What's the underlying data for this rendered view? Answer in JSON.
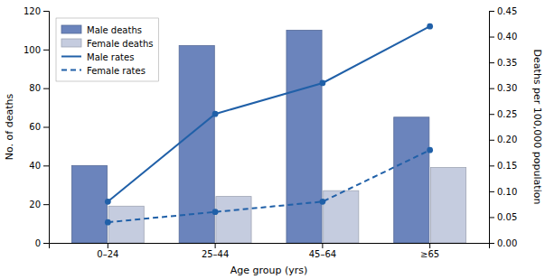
{
  "chart_data": {
    "type": "bar",
    "categories": [
      "0–24",
      "25–44",
      "45–64",
      "≥65"
    ],
    "xlabel": "Age group (yrs)",
    "ylabel": "No. of deaths",
    "y2label": "Deaths per 100,000 population",
    "ylim": [
      0,
      120
    ],
    "yticks": [
      0,
      20,
      40,
      60,
      80,
      100,
      120
    ],
    "y2lim": [
      0,
      0.45
    ],
    "y2ticks": [
      {
        "value": 0.0,
        "label": "0.00"
      },
      {
        "value": 0.05,
        "label": "0.05"
      },
      {
        "value": 0.1,
        "label": "0.10"
      },
      {
        "value": 0.15,
        "label": "0.15"
      },
      {
        "value": 0.2,
        "label": "0.20"
      },
      {
        "value": 0.25,
        "label": "0.25"
      },
      {
        "value": 0.3,
        "label": "0.30"
      },
      {
        "value": 0.35,
        "label": "0.35"
      },
      {
        "value": 0.4,
        "label": "0.40"
      },
      {
        "value": 0.45,
        "label": "0.45"
      }
    ],
    "grid": false,
    "legend": "upper left",
    "series": [
      {
        "name": "Male deaths",
        "type": "bar",
        "color": "#6b84bc",
        "values": [
          40,
          102,
          110,
          65
        ]
      },
      {
        "name": "Female deaths",
        "type": "bar",
        "color": "#c5ccdf",
        "values": [
          19,
          24,
          27,
          39
        ]
      },
      {
        "name": "Male rates",
        "type": "line",
        "axis": "y2",
        "color": "#2060a8",
        "line_style": "solid",
        "marker": "circle",
        "values": [
          0.08,
          0.25,
          0.31,
          0.42
        ]
      },
      {
        "name": "Female rates",
        "type": "line",
        "axis": "y2",
        "color": "#2060a8",
        "line_style": "dashed",
        "marker": "circle",
        "values": [
          0.04,
          0.06,
          0.08,
          0.18
        ]
      }
    ]
  }
}
